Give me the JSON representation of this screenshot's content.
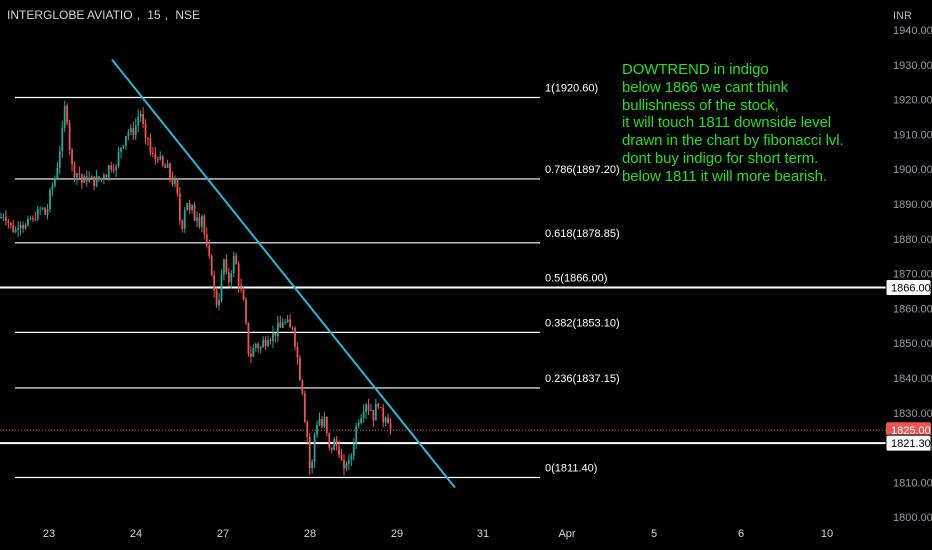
{
  "header": {
    "symbol": "INTERGLOBE AVIATIO",
    "interval": "15",
    "exchange": "NSE"
  },
  "currency": "INR",
  "annotation": {
    "lines": [
      "DOWTREND in indigo",
      "below 1866 we cant think",
      "bullishness of the stock,",
      "it will touch 1811 downside level",
      "drawn in the chart by fibonacci lvl.",
      "dont buy indigo for short term.",
      "below 1811 it will more bearish."
    ],
    "color": "#22e01f"
  },
  "colors": {
    "background": "#000000",
    "up": "#26a69a",
    "down": "#ef5350",
    "trendline": "#29b6d6",
    "fib": "#ffffff",
    "price_tag": "#ef5350"
  },
  "chart_data": {
    "type": "candlestick",
    "ylim": [
      1795,
      1945
    ],
    "y_ticks": [
      "1800.00",
      "1810.00",
      "1820.00",
      "1830.00",
      "1840.00",
      "1850.00",
      "1860.00",
      "1870.00",
      "1880.00",
      "1890.00",
      "1900.00",
      "1910.00",
      "1920.00",
      "1930.00",
      "1940.00"
    ],
    "x_ticks": [
      "23",
      "24",
      "27",
      "28",
      "29",
      "31",
      "Apr",
      "5",
      "6",
      "10"
    ],
    "fib_levels": [
      {
        "label": "1(1920.60)",
        "price": 1920.6
      },
      {
        "label": "0.786(1897.20)",
        "price": 1897.2
      },
      {
        "label": "0.618(1878.85)",
        "price": 1878.85
      },
      {
        "label": "0.5(1866.00)",
        "price": 1866.0
      },
      {
        "label": "0.382(1853.10)",
        "price": 1853.1
      },
      {
        "label": "0.236(1837.15)",
        "price": 1837.15
      },
      {
        "label": "0(1811.40)",
        "price": 1811.4
      }
    ],
    "price_tags": [
      {
        "label": "1866.00",
        "price": 1866.0,
        "style": "white"
      },
      {
        "label": "1825.00",
        "price": 1825.0,
        "style": "red"
      },
      {
        "label": "1821.30",
        "price": 1821.3,
        "style": "white"
      }
    ],
    "trendline": {
      "from_price": 1931.5,
      "to_price": 1808.5
    },
    "current_price": 1825.0,
    "support_line": 1821.3,
    "close_path": [
      [
        0,
        1886
      ],
      [
        4,
        1887
      ],
      [
        8,
        1885
      ],
      [
        12,
        1883
      ],
      [
        15,
        1882
      ],
      [
        18,
        1884
      ],
      [
        21,
        1885
      ],
      [
        24,
        1883
      ],
      [
        27,
        1884
      ],
      [
        30,
        1886
      ],
      [
        33,
        1885
      ],
      [
        36,
        1887
      ],
      [
        39,
        1888
      ],
      [
        42,
        1889
      ],
      [
        45,
        1887
      ],
      [
        48,
        1889
      ],
      [
        50,
        1893
      ],
      [
        52,
        1895
      ],
      [
        54,
        1896
      ],
      [
        56,
        1899
      ],
      [
        58,
        1902
      ],
      [
        60,
        1906
      ],
      [
        62,
        1910
      ],
      [
        64,
        1917
      ],
      [
        66,
        1919
      ],
      [
        68,
        1911
      ],
      [
        70,
        1905
      ],
      [
        72,
        1901
      ],
      [
        74,
        1899
      ],
      [
        76,
        1898
      ],
      [
        78,
        1900
      ],
      [
        80,
        1898
      ],
      [
        82,
        1896
      ],
      [
        84,
        1897
      ],
      [
        86,
        1898
      ],
      [
        88,
        1896
      ],
      [
        90,
        1898
      ],
      [
        92,
        1897
      ],
      [
        94,
        1896
      ],
      [
        96,
        1897
      ],
      [
        98,
        1898
      ],
      [
        100,
        1896
      ],
      [
        102,
        1898
      ],
      [
        104,
        1899
      ],
      [
        106,
        1898
      ],
      [
        108,
        1900
      ],
      [
        110,
        1902
      ],
      [
        112,
        1900
      ],
      [
        114,
        1901
      ],
      [
        116,
        1900
      ],
      [
        118,
        1904
      ],
      [
        120,
        1906
      ],
      [
        122,
        1907
      ],
      [
        124,
        1908
      ],
      [
        126,
        1910
      ],
      [
        128,
        1911
      ],
      [
        130,
        1910
      ],
      [
        132,
        1912
      ],
      [
        134,
        1910
      ],
      [
        136,
        1913
      ],
      [
        138,
        1915
      ],
      [
        140,
        1917
      ],
      [
        142,
        1914
      ],
      [
        144,
        1911
      ],
      [
        146,
        1907
      ],
      [
        148,
        1909
      ],
      [
        150,
        1905
      ],
      [
        152,
        1903
      ],
      [
        154,
        1905
      ],
      [
        156,
        1902
      ],
      [
        158,
        1904
      ],
      [
        160,
        1903
      ],
      [
        162,
        1900
      ],
      [
        164,
        1902
      ],
      [
        166,
        1899
      ],
      [
        168,
        1901
      ],
      [
        170,
        1898
      ],
      [
        172,
        1896
      ],
      [
        174,
        1897
      ],
      [
        176,
        1895
      ],
      [
        178,
        1891
      ],
      [
        180,
        1885
      ],
      [
        182,
        1883
      ],
      [
        184,
        1888
      ],
      [
        186,
        1890
      ],
      [
        188,
        1891
      ],
      [
        190,
        1887
      ],
      [
        192,
        1889
      ],
      [
        194,
        1885
      ],
      [
        196,
        1888
      ],
      [
        198,
        1886
      ],
      [
        200,
        1884
      ],
      [
        202,
        1887
      ],
      [
        204,
        1882
      ],
      [
        206,
        1878
      ],
      [
        208,
        1876
      ],
      [
        210,
        1873
      ],
      [
        212,
        1870
      ],
      [
        214,
        1865
      ],
      [
        216,
        1862
      ],
      [
        218,
        1860
      ],
      [
        220,
        1866
      ],
      [
        222,
        1870
      ],
      [
        224,
        1874
      ],
      [
        226,
        1870
      ],
      [
        228,
        1867
      ],
      [
        230,
        1869
      ],
      [
        232,
        1872
      ],
      [
        234,
        1875
      ],
      [
        236,
        1873
      ],
      [
        238,
        1868
      ],
      [
        240,
        1866
      ],
      [
        242,
        1864
      ],
      [
        244,
        1861
      ],
      [
        246,
        1855
      ],
      [
        248,
        1848
      ],
      [
        250,
        1846
      ],
      [
        252,
        1847
      ],
      [
        254,
        1849
      ],
      [
        256,
        1850
      ],
      [
        258,
        1849
      ],
      [
        260,
        1848
      ],
      [
        262,
        1850
      ],
      [
        264,
        1851
      ],
      [
        266,
        1850
      ],
      [
        268,
        1852
      ],
      [
        270,
        1851
      ],
      [
        272,
        1853
      ],
      [
        274,
        1852
      ],
      [
        276,
        1853
      ],
      [
        278,
        1855
      ],
      [
        280,
        1854
      ],
      [
        282,
        1856
      ],
      [
        284,
        1857
      ],
      [
        286,
        1855
      ],
      [
        288,
        1856
      ],
      [
        290,
        1854
      ],
      [
        292,
        1856
      ],
      [
        294,
        1852
      ],
      [
        296,
        1848
      ],
      [
        298,
        1845
      ],
      [
        300,
        1840
      ],
      [
        302,
        1838
      ],
      [
        304,
        1829
      ],
      [
        306,
        1827
      ],
      [
        308,
        1821
      ],
      [
        310,
        1813
      ],
      [
        312,
        1815
      ],
      [
        314,
        1822
      ],
      [
        316,
        1828
      ],
      [
        318,
        1826
      ],
      [
        320,
        1829
      ],
      [
        322,
        1826
      ],
      [
        324,
        1829
      ],
      [
        326,
        1825
      ],
      [
        328,
        1822
      ],
      [
        330,
        1818
      ],
      [
        332,
        1820
      ],
      [
        334,
        1822
      ],
      [
        336,
        1821
      ],
      [
        338,
        1819
      ],
      [
        340,
        1819
      ],
      [
        342,
        1815
      ],
      [
        344,
        1813
      ],
      [
        346,
        1816
      ],
      [
        348,
        1816
      ],
      [
        350,
        1815
      ],
      [
        352,
        1819
      ],
      [
        354,
        1822
      ],
      [
        356,
        1826
      ],
      [
        358,
        1827
      ],
      [
        360,
        1830
      ],
      [
        362,
        1829
      ],
      [
        364,
        1832
      ],
      [
        366,
        1833
      ],
      [
        368,
        1831
      ],
      [
        370,
        1832
      ],
      [
        372,
        1830
      ],
      [
        374,
        1828
      ],
      [
        376,
        1832
      ],
      [
        378,
        1833
      ],
      [
        380,
        1831
      ],
      [
        382,
        1829
      ],
      [
        384,
        1827
      ],
      [
        386,
        1830
      ],
      [
        388,
        1828
      ],
      [
        390,
        1825
      ],
      [
        392,
        1825
      ]
    ]
  }
}
